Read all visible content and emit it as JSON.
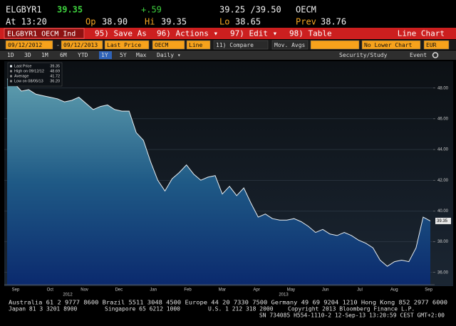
{
  "header": {
    "ticker": "ELGBYR1",
    "price": "39.35",
    "change": "+.59",
    "bid_ask": "39.25 /39.50",
    "source": "OECM",
    "time": "At 13:20",
    "open_label": "Op",
    "open": "38.90",
    "high_label": "Hi",
    "high": "39.35",
    "low_label": "Lo",
    "low": "38.65",
    "prev_label": "Prev",
    "prev": "38.76"
  },
  "toolbar": {
    "security": "ELGBYR1 OECM Ind",
    "buttons": [
      "95) Save As",
      "96) Actions ▾",
      "97) Edit ▾",
      "98) Table"
    ],
    "chart_type": "Line Chart"
  },
  "controls": {
    "start": "09/12/2012",
    "separator": "-",
    "end": "09/12/2013",
    "field": "Last Price",
    "source": "OECM",
    "style": "Line",
    "compare": "11) Compare",
    "mov_avgs": "Mov. Avgs",
    "lower": "No Lower Chart",
    "currency": "EUR"
  },
  "periods": {
    "items": [
      "1D",
      "3D",
      "1M",
      "6M",
      "YTD",
      "1Y",
      "5Y",
      "Max"
    ],
    "selected": "1Y",
    "frequency": "Daily ▾",
    "security_study": "Security/Study",
    "event": "Event"
  },
  "chart_data": {
    "type": "line",
    "legend": [
      {
        "label": "Last Price",
        "value": "39.35"
      },
      {
        "label": "High on 09/12/12",
        "value": "48.69"
      },
      {
        "label": "Average",
        "value": "41.72"
      },
      {
        "label": "Low on 08/05/13",
        "value": "36.20"
      }
    ],
    "months": [
      "Sep",
      "Oct",
      "Nov",
      "Dec",
      "Jan",
      "Feb",
      "Mar",
      "Apr",
      "May",
      "Jun",
      "Jul",
      "Aug",
      "Sep"
    ],
    "years": [
      "2012",
      "2013"
    ],
    "series": [
      {
        "color": "#e8eef2",
        "values": [
          48.6,
          48.3,
          47.8,
          47.9,
          47.6,
          47.5,
          47.4,
          47.3,
          47.1,
          47.2,
          47.4,
          47.0,
          46.6,
          46.8,
          46.9,
          46.6,
          46.5,
          46.5,
          45.1,
          44.6,
          43.2,
          42.0,
          41.3,
          42.1,
          42.5,
          43.0,
          42.4,
          42.0,
          42.2,
          42.3,
          41.1,
          41.6,
          41.0,
          41.5,
          40.5,
          39.6,
          39.8,
          39.5,
          39.4,
          39.4,
          39.5,
          39.3,
          39.0,
          38.6,
          38.8,
          38.5,
          38.4,
          38.6,
          38.4,
          38.1,
          37.9,
          37.6,
          36.8,
          36.4,
          36.7,
          36.8,
          36.7,
          37.6,
          39.6,
          39.35
        ]
      }
    ],
    "last_value_label": "39.35",
    "ylim": [
      35.2,
      49.7
    ],
    "yticks": [
      {
        "value": 36,
        "label": "36.00"
      },
      {
        "value": 38,
        "label": "38.00"
      },
      {
        "value": 40,
        "label": "40.00"
      },
      {
        "value": 42,
        "label": "42.00"
      },
      {
        "value": 44,
        "label": "44.00"
      },
      {
        "value": 46,
        "label": "46.00"
      },
      {
        "value": 48,
        "label": "48.00"
      }
    ],
    "grid": true
  },
  "footer": [
    "Australia 61 2 9777 8600 Brazil 5511 3048 4500 Europe 44 20 7330 7500 Germany 49 69 9204 1210 Hong Kong 852 2977 6000",
    "Japan 81 3 3201 8900",
    "Singapore 65 6212 1000",
    "U.S. 1 212 318 2000",
    "Copyright 2013 Bloomberg Finance L.P.",
    "SN 734085 H554-1110-2 12-Sep-13 13:20:59 CEST GMT+2:00"
  ]
}
